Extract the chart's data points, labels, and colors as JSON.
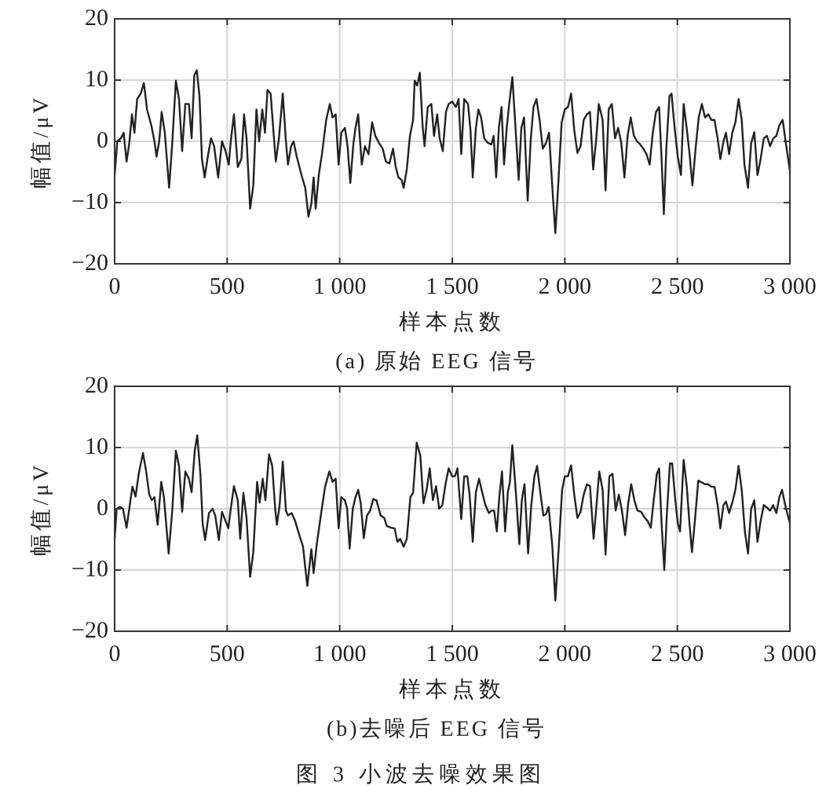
{
  "chart_data": [
    {
      "type": "line",
      "title": "(a) 原始 EEG 信号",
      "xlabel": "样本点数",
      "ylabel": "幅值/μV",
      "xlim": [
        0,
        3000
      ],
      "ylim": [
        -20,
        20
      ],
      "xticks": [
        {
          "value": 0,
          "label": "0"
        },
        {
          "value": 500,
          "label": "500"
        },
        {
          "value": 1000,
          "label": "1 000"
        },
        {
          "value": 1500,
          "label": "1 500"
        },
        {
          "value": 2000,
          "label": "2 000"
        },
        {
          "value": 2500,
          "label": "2 500"
        },
        {
          "value": 3000,
          "label": "3 000"
        }
      ],
      "yticks": [
        -20,
        -10,
        0,
        10,
        20
      ],
      "grid": true,
      "x": [
        0,
        12,
        28,
        40,
        53,
        65,
        77,
        88,
        100,
        116,
        130,
        144,
        163,
        177,
        186,
        198,
        209,
        223,
        242,
        256,
        272,
        286,
        300,
        314,
        330,
        342,
        354,
        365,
        377,
        388,
        400,
        414,
        428,
        442,
        460,
        477,
        493,
        507,
        516,
        530,
        547,
        563,
        575,
        586,
        602,
        616,
        630,
        642,
        656,
        668,
        679,
        693,
        707,
        716,
        730,
        747,
        761,
        770,
        784,
        795,
        809,
        833,
        847,
        861,
        874,
        884,
        893,
        907,
        921,
        940,
        956,
        968,
        982,
        995,
        1007,
        1023,
        1035,
        1047,
        1061,
        1070,
        1082,
        1098,
        1112,
        1128,
        1144,
        1158,
        1175,
        1191,
        1205,
        1221,
        1237,
        1249,
        1261,
        1275,
        1284,
        1298,
        1312,
        1326,
        1333,
        1344,
        1356,
        1368,
        1377,
        1391,
        1407,
        1419,
        1433,
        1444,
        1458,
        1472,
        1484,
        1500,
        1516,
        1528,
        1540,
        1553,
        1570,
        1581,
        1591,
        1605,
        1616,
        1628,
        1642,
        1656,
        1674,
        1684,
        1695,
        1707,
        1719,
        1730,
        1742,
        1753,
        1767,
        1781,
        1795,
        1807,
        1819,
        1835,
        1849,
        1861,
        1874,
        1888,
        1902,
        1916,
        1930,
        1944,
        1958,
        1972,
        1986,
        2000,
        2014,
        2028,
        2042,
        2056,
        2070,
        2084,
        2098,
        2112,
        2126,
        2140,
        2151,
        2168,
        2181,
        2195,
        2209,
        2223,
        2237,
        2251,
        2265,
        2279,
        2293,
        2307,
        2321,
        2335,
        2349,
        2363,
        2377,
        2391,
        2405,
        2419,
        2430,
        2440,
        2451,
        2465,
        2474,
        2488,
        2502,
        2516,
        2528,
        2540,
        2553,
        2567,
        2581,
        2595,
        2609,
        2623,
        2637,
        2651,
        2665,
        2679,
        2691,
        2705,
        2716,
        2730,
        2744,
        2758,
        2772,
        2786,
        2798,
        2814,
        2828,
        2842,
        2856,
        2870,
        2884,
        2898,
        2912,
        2926,
        2940,
        2953,
        2968,
        2979,
        3000
      ],
      "series": [
        {
          "color": "#222222",
          "values": [
            -5.5,
            0,
            0.5,
            1.4,
            -3.3,
            -0.3,
            4.4,
            1.4,
            6.9,
            7.8,
            9.5,
            5.2,
            2.6,
            0,
            -2.5,
            0,
            4.8,
            1.4,
            -7.6,
            -0.3,
            9.9,
            6.9,
            -1.6,
            6.1,
            6.1,
            0.5,
            10.8,
            11.6,
            7.4,
            -2.9,
            -5.9,
            -2.5,
            0.5,
            -0.8,
            -5.9,
            0,
            -1.6,
            -3.8,
            0,
            4.4,
            -4.2,
            -2.9,
            4.4,
            0.5,
            -11,
            -7.2,
            5.2,
            0,
            5.2,
            1.4,
            8.4,
            7.8,
            0.9,
            -3.3,
            0.5,
            7.8,
            0,
            -3.8,
            -0.8,
            0,
            -2.5,
            -5.9,
            -7.6,
            -12.3,
            -10.2,
            -5.9,
            -11,
            -5.5,
            -2.1,
            3.5,
            6.1,
            3.9,
            4.4,
            -3.8,
            1.4,
            2.2,
            -0.8,
            -6.8,
            -0.3,
            2.2,
            4.4,
            -3.8,
            -0.8,
            -2.1,
            3.1,
            0.9,
            -0.3,
            -1.2,
            -3.3,
            -3.6,
            -1.2,
            -4.2,
            -5.9,
            -6.3,
            -7.6,
            -4.6,
            0.9,
            3.5,
            9.9,
            9.1,
            11.2,
            2.6,
            -0.8,
            5.6,
            6.1,
            0.9,
            4.4,
            0.5,
            -1.6,
            4.8,
            6.1,
            6.5,
            5.6,
            6.9,
            -2.1,
            6.9,
            6.1,
            1.8,
            -5.9,
            2.2,
            5.2,
            3.9,
            0.5,
            -0.2,
            -0.5,
            0.9,
            -5.9,
            2.2,
            5.6,
            -3.8,
            2.2,
            6.1,
            10.5,
            2.2,
            -6.3,
            2.2,
            3.9,
            -9.7,
            0.5,
            5.6,
            6.9,
            3.5,
            -1.2,
            -0.3,
            1.4,
            -7.2,
            -15,
            -6.3,
            3.1,
            5.2,
            5.6,
            7.8,
            1.8,
            -1.9,
            -0.8,
            3.5,
            4.4,
            4.8,
            -4.6,
            0.5,
            6.1,
            3.5,
            -8,
            5.2,
            6.1,
            0.5,
            2.2,
            -0.3,
            -5.9,
            0.9,
            3.9,
            0.9,
            0,
            -0.5,
            -1.2,
            -2.1,
            -3.8,
            1.4,
            4.8,
            5.6,
            -2.9,
            -11.9,
            -1.2,
            7.4,
            7.8,
            2.2,
            -2.5,
            -5.5,
            6.1,
            2.6,
            -1.6,
            -7.2,
            -1.2,
            3.9,
            6.1,
            3.9,
            4.4,
            3.5,
            3.5,
            0.5,
            -2.9,
            0,
            1.4,
            -2.1,
            1.4,
            3.1,
            6.9,
            3.5,
            -3.8,
            -7.6,
            -0.3,
            1.5,
            -5.5,
            -2.9,
            0.5,
            0.9,
            -0.8,
            0.5,
            0.9,
            2.6,
            3.5,
            0.5,
            -4.8
          ]
        }
      ]
    },
    {
      "type": "line",
      "title": "(b)去噪后 EEG 信号",
      "xlabel": "样本点数",
      "ylabel": "幅值/μV",
      "xlim": [
        0,
        3000
      ],
      "ylim": [
        -20,
        20
      ],
      "xticks": [
        {
          "value": 0,
          "label": "0"
        },
        {
          "value": 500,
          "label": "500"
        },
        {
          "value": 1000,
          "label": "1 000"
        },
        {
          "value": 1500,
          "label": "1 500"
        },
        {
          "value": 2000,
          "label": "2 000"
        },
        {
          "value": 2500,
          "label": "2 500"
        },
        {
          "value": 3000,
          "label": "3 000"
        }
      ],
      "yticks": [
        -20,
        -10,
        0,
        10,
        20
      ],
      "grid": true,
      "annotations": [
        "图 3 小波去噪效果图"
      ],
      "x": [
        0,
        9,
        23,
        37,
        53,
        65,
        79,
        93,
        107,
        126,
        140,
        154,
        165,
        177,
        191,
        207,
        219,
        240,
        256,
        272,
        286,
        300,
        314,
        330,
        342,
        356,
        367,
        381,
        391,
        402,
        419,
        435,
        447,
        463,
        477,
        493,
        505,
        516,
        530,
        547,
        558,
        572,
        586,
        602,
        616,
        633,
        644,
        658,
        670,
        686,
        700,
        714,
        721,
        733,
        747,
        761,
        770,
        786,
        802,
        819,
        837,
        856,
        874,
        884,
        898,
        916,
        935,
        954,
        968,
        982,
        995,
        1007,
        1023,
        1033,
        1044,
        1058,
        1070,
        1082,
        1093,
        1107,
        1121,
        1135,
        1149,
        1163,
        1182,
        1198,
        1209,
        1228,
        1244,
        1256,
        1268,
        1284,
        1298,
        1314,
        1326,
        1342,
        1358,
        1372,
        1386,
        1400,
        1414,
        1428,
        1442,
        1456,
        1470,
        1484,
        1500,
        1512,
        1523,
        1540,
        1553,
        1567,
        1577,
        1591,
        1605,
        1619,
        1633,
        1647,
        1663,
        1674,
        1686,
        1698,
        1709,
        1721,
        1735,
        1747,
        1756,
        1767,
        1784,
        1798,
        1809,
        1821,
        1837,
        1851,
        1865,
        1877,
        1891,
        1905,
        1916,
        1928,
        1944,
        1958,
        1974,
        1988,
        2000,
        2014,
        2028,
        2042,
        2056,
        2070,
        2084,
        2098,
        2112,
        2128,
        2140,
        2153,
        2168,
        2181,
        2198,
        2212,
        2226,
        2240,
        2254,
        2268,
        2282,
        2295,
        2309,
        2323,
        2339,
        2354,
        2368,
        2382,
        2395,
        2409,
        2419,
        2430,
        2442,
        2453,
        2467,
        2477,
        2491,
        2502,
        2512,
        2528,
        2542,
        2553,
        2565,
        2579,
        2593,
        2609,
        2623,
        2637,
        2651,
        2665,
        2679,
        2691,
        2705,
        2716,
        2730,
        2744,
        2758,
        2772,
        2786,
        2800,
        2814,
        2828,
        2842,
        2856,
        2870,
        2884,
        2898,
        2912,
        2926,
        2940,
        2953,
        2965,
        2979,
        3000
      ],
      "series": [
        {
          "color": "#222222",
          "values": [
            -4.9,
            0,
            0.3,
            0,
            -3.1,
            0,
            3.6,
            2,
            5.7,
            9.1,
            6.1,
            2.3,
            1.4,
            1.9,
            -2.6,
            4.4,
            1.9,
            -7.3,
            -0.3,
            9.5,
            7,
            -0.5,
            6.1,
            4.9,
            2.7,
            9.5,
            12,
            5.7,
            -2.4,
            -5.1,
            -0.7,
            0,
            -1.1,
            -5.1,
            -0.5,
            -2,
            -3.2,
            0,
            3.7,
            1.4,
            -4.9,
            2.6,
            -1.5,
            -11.1,
            -7.1,
            4.4,
            1,
            4.9,
            1.4,
            8.9,
            7,
            -0.3,
            -2.6,
            0.6,
            7.7,
            -0.3,
            -1.1,
            -0.7,
            -2,
            -4.1,
            -6.2,
            -12.6,
            -6.6,
            -10.5,
            -5.8,
            -1.1,
            3.6,
            6.1,
            4.4,
            4.9,
            -3.2,
            1.9,
            1.4,
            0,
            -6.5,
            0,
            1.9,
            3.1,
            1,
            -4.8,
            -1.1,
            -0.3,
            1.6,
            1.4,
            -1.1,
            -1.5,
            -2.8,
            -3.1,
            -3.2,
            -5.4,
            -4.9,
            -6.2,
            -4.9,
            1.9,
            2.6,
            10.8,
            8.7,
            0.9,
            3.1,
            6.6,
            1.4,
            3.7,
            0,
            0.6,
            4,
            6.6,
            5.3,
            5.3,
            6.6,
            -1.7,
            5.3,
            5.3,
            2.3,
            -5.4,
            2.7,
            4.9,
            2.7,
            0.6,
            -0.7,
            -0.3,
            -0.3,
            -3.7,
            1.9,
            6.1,
            -3.7,
            2.7,
            4.4,
            10.4,
            1.9,
            -5.8,
            1.4,
            4,
            -7.3,
            0.6,
            5.3,
            7,
            2.7,
            -1.1,
            -0.9,
            0.3,
            -5.8,
            -15,
            -5.8,
            3.1,
            5.3,
            5.3,
            7.1,
            2.3,
            -1.5,
            -0.5,
            2.3,
            4,
            3.7,
            -4.9,
            0.2,
            6.1,
            3.1,
            -7.5,
            5.3,
            5.7,
            -0.3,
            2.3,
            -0.3,
            -4.3,
            1,
            4,
            1.4,
            -0.3,
            -0.5,
            -1.4,
            -2,
            -3.1,
            1.4,
            5.7,
            6.6,
            -2.4,
            -10,
            -1.1,
            7.4,
            7.4,
            1.4,
            -2.4,
            -3.7,
            8,
            3.6,
            -2,
            -7.1,
            -1.5,
            4.6,
            4.3,
            4,
            4,
            3.6,
            3.6,
            0.6,
            -3.2,
            0.6,
            1.2,
            -0.7,
            1,
            3.1,
            7,
            3.1,
            -3.7,
            -7.3,
            0,
            1.4,
            -5.4,
            -2,
            0.6,
            0.2,
            -0.3,
            0.6,
            -0.7,
            1.9,
            3.1,
            0.6,
            -2.4
          ]
        }
      ]
    }
  ]
}
